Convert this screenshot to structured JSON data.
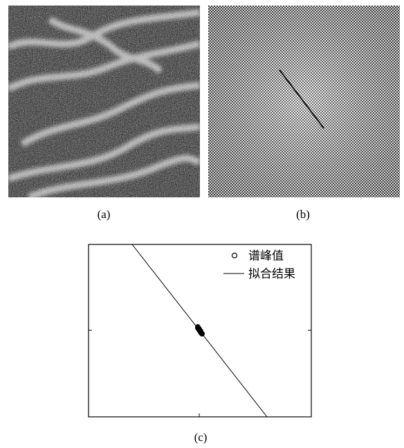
{
  "figure": {
    "panel_a": {
      "caption": "(a)"
    },
    "panel_b": {
      "caption": "(b)"
    },
    "panel_c": {
      "caption": "(c)",
      "legend": [
        {
          "marker": "circle",
          "label": "谱峰值"
        },
        {
          "marker": "line",
          "label": "拟合结果"
        }
      ]
    }
  },
  "chart_data": {
    "type": "scatter",
    "title": "",
    "xlabel": "",
    "ylabel": "",
    "legend_position": "top-right",
    "grid": false,
    "series": [
      {
        "name": "谱峰值",
        "kind": "scatter",
        "marker": "circle"
      },
      {
        "name": "拟合结果",
        "kind": "line"
      }
    ]
  }
}
